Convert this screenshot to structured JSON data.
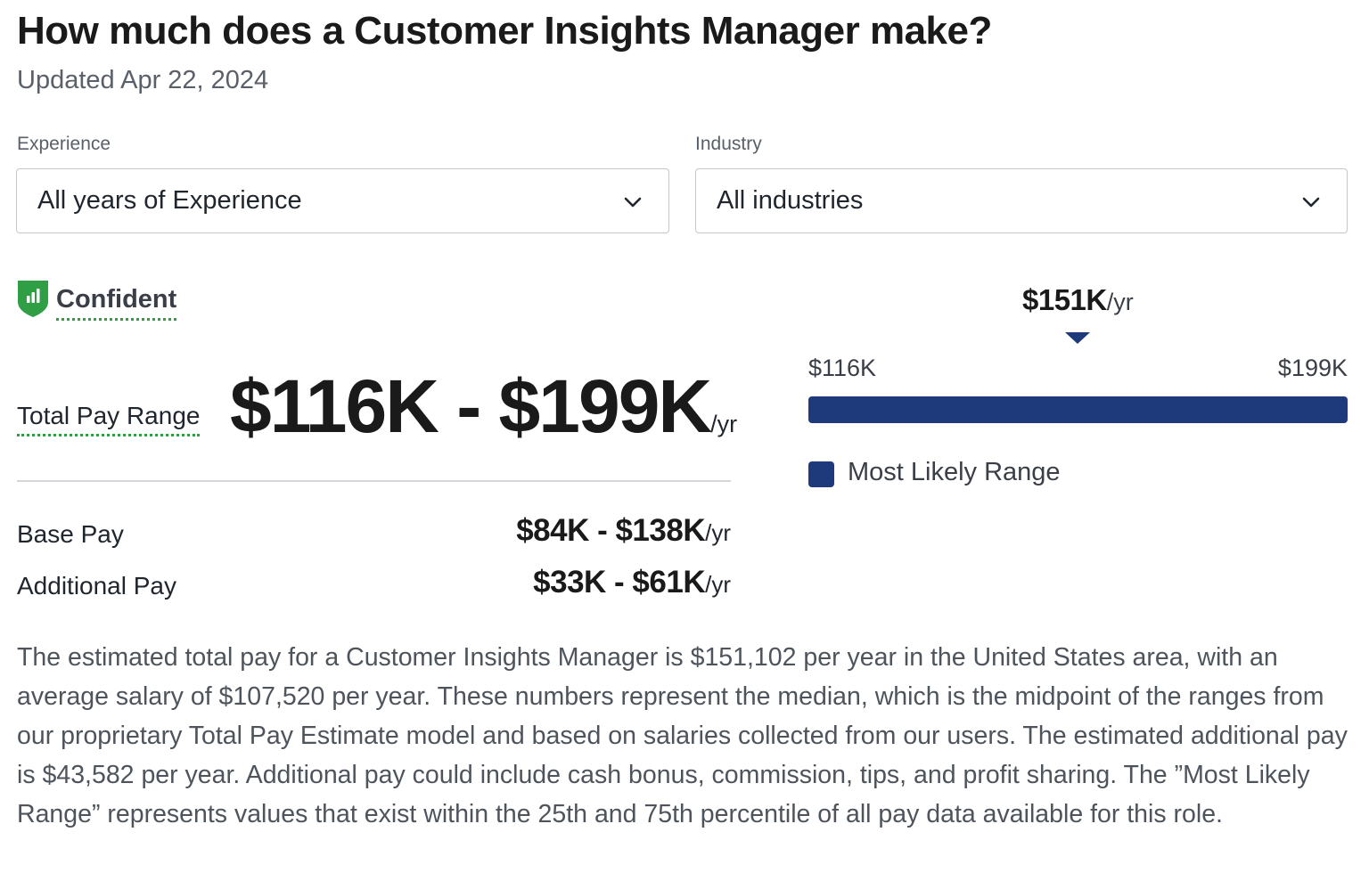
{
  "header": {
    "title": "How much does a Customer Insights Manager make?",
    "updated": "Updated Apr 22, 2024"
  },
  "filters": {
    "experience": {
      "label": "Experience",
      "selected": "All years of Experience",
      "icon": "chevron-down-icon"
    },
    "industry": {
      "label": "Industry",
      "selected": "All industries",
      "icon": "chevron-down-icon"
    }
  },
  "confidence": {
    "label": "Confident",
    "icon": "shield-bar-chart-icon",
    "color": "#2f9e44"
  },
  "total_pay": {
    "label": "Total Pay Range",
    "value": "$116K - $199K",
    "unit": "/yr"
  },
  "base_pay": {
    "label": "Base Pay",
    "value": "$84K - $138K",
    "unit": "/yr"
  },
  "additional_pay": {
    "label": "Additional Pay",
    "value": "$33K - $61K",
    "unit": "/yr"
  },
  "range_chart": {
    "median": "$151K",
    "unit": "/yr",
    "min_label": "$116K",
    "max_label": "$199K",
    "legend": "Most Likely Range",
    "bar_color": "#1e3a7b"
  },
  "description": "The estimated total pay for a Customer Insights Manager is $151,102 per year in the United States area, with an average salary of $107,520 per year. These numbers represent the median, which is the midpoint of the ranges from our proprietary Total Pay Estimate model and based on salaries collected from our users. The estimated additional pay is $43,582 per year. Additional pay could include cash bonus, commission, tips, and profit sharing. The ”Most Likely Range” represents values that exist within the 25th and 75th percentile of all pay data available for this role."
}
